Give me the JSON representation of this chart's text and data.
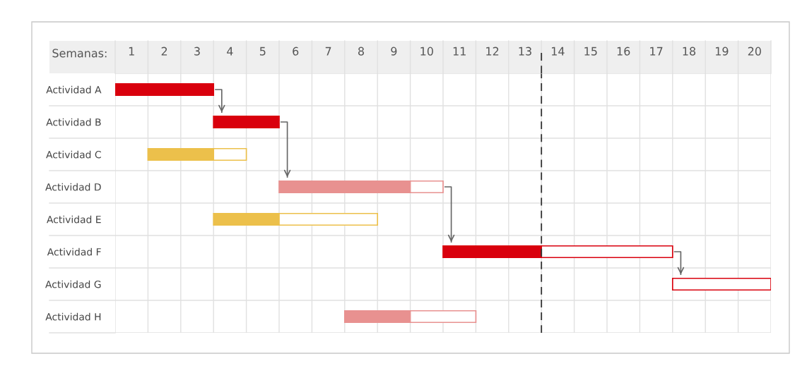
{
  "chart_data": {
    "type": "bar",
    "orientation": "horizontal",
    "xlabel": "Semanas:",
    "categories": [
      "Actividad A",
      "Actividad B",
      "Actividad C",
      "Actividad D",
      "Actividad E",
      "Actividad F",
      "Actividad G",
      "Actividad H"
    ],
    "series": [
      {
        "colors": [
          "#d9000d",
          "#d9000d",
          "#ecc04b",
          "#e89190",
          "#ecc04b",
          "#d9000d",
          "#d9000d",
          "#e89190"
        ],
        "base": [
          0,
          3,
          1,
          5,
          3,
          10,
          null,
          7
        ],
        "values": [
          3,
          2,
          2,
          4,
          2,
          3,
          null,
          2
        ]
      },
      {
        "colors": [
          "#d9000d",
          "#d9000d",
          "#ecc04b",
          "#e89190",
          "#ecc04b",
          "#d9000d",
          "#d9000d",
          "#e89190"
        ],
        "base": [
          null,
          null,
          3,
          9,
          5,
          13,
          17,
          9
        ],
        "values": [
          null,
          null,
          1,
          1,
          3,
          4,
          3,
          2
        ]
      }
    ],
    "xlim": [
      0,
      20
    ],
    "xticks": [
      {
        "value": 0,
        "label": null
      },
      {
        "value": 0.5,
        "label": "1"
      },
      {
        "value": 1,
        "label": null
      },
      {
        "value": 1.5,
        "label": "2"
      },
      {
        "value": 2,
        "label": null
      },
      {
        "value": 2.5,
        "label": "3"
      },
      {
        "value": 3,
        "label": null
      },
      {
        "value": 3.5,
        "label": "4"
      },
      {
        "value": 4,
        "label": null
      },
      {
        "value": 4.5,
        "label": "5"
      },
      {
        "value": 5,
        "label": null
      },
      {
        "value": 5.5,
        "label": "6"
      },
      {
        "value": 6,
        "label": null
      },
      {
        "value": 6.5,
        "label": "7"
      },
      {
        "value": 7,
        "label": null
      },
      {
        "value": 7.5,
        "label": "8"
      },
      {
        "value": 8,
        "label": null
      },
      {
        "value": 8.5,
        "label": "9"
      },
      {
        "value": 9,
        "label": null
      },
      {
        "value": 9.5,
        "label": "10"
      },
      {
        "value": 10,
        "label": null
      },
      {
        "value": 10.5,
        "label": "11"
      },
      {
        "value": 11,
        "label": null
      },
      {
        "value": 11.5,
        "label": "12"
      },
      {
        "value": 12,
        "label": null
      },
      {
        "value": 12.5,
        "label": "13"
      },
      {
        "value": 13,
        "label": null
      },
      {
        "value": 13.5,
        "label": "14"
      },
      {
        "value": 14,
        "label": null
      },
      {
        "value": 14.5,
        "label": "15"
      },
      {
        "value": 15,
        "label": null
      },
      {
        "value": 15.5,
        "label": "16"
      },
      {
        "value": 16,
        "label": null
      },
      {
        "value": 16.5,
        "label": "17"
      },
      {
        "value": 17,
        "label": null
      },
      {
        "value": 17.5,
        "label": "18"
      },
      {
        "value": 18,
        "label": null
      },
      {
        "value": 18.5,
        "label": "19"
      },
      {
        "value": 19,
        "label": null
      },
      {
        "value": 19.5,
        "label": "20"
      },
      {
        "value": 20,
        "label": null
      }
    ],
    "grid": true,
    "ref_lines": [
      {
        "axis": "x",
        "value": 13,
        "color": "#333333",
        "line_style": "dashed"
      }
    ]
  }
}
